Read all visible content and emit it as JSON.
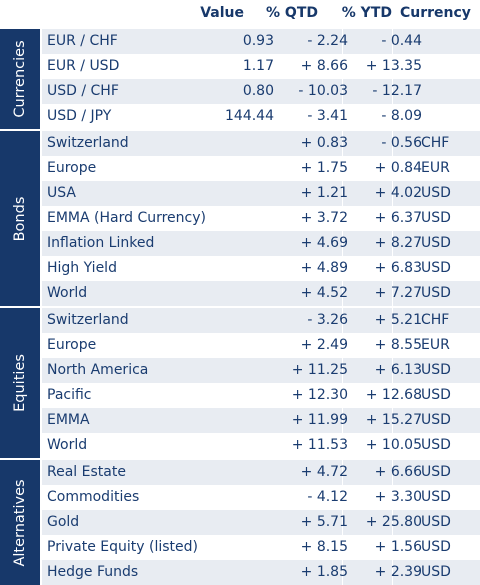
{
  "header": {
    "value": "Value",
    "qtd": "% QTD",
    "ytd": "% YTD",
    "currency": "Currency"
  },
  "sections": [
    {
      "label": "Currencies",
      "rows": [
        {
          "name": "EUR / CHF",
          "value": "0.93",
          "qtd": "- 2.24",
          "ytd": "- 0.44",
          "currency": ""
        },
        {
          "name": "EUR / USD",
          "value": "1.17",
          "qtd": "+ 8.66",
          "ytd": "+ 13.35",
          "currency": ""
        },
        {
          "name": "USD / CHF",
          "value": "0.80",
          "qtd": "- 10.03",
          "ytd": "- 12.17",
          "currency": ""
        },
        {
          "name": "USD / JPY",
          "value": "144.44",
          "qtd": "- 3.41",
          "ytd": "- 8.09",
          "currency": ""
        }
      ]
    },
    {
      "label": "Bonds",
      "rows": [
        {
          "name": "Switzerland",
          "value": "",
          "qtd": "+ 0.83",
          "ytd": "- 0.56",
          "currency": "CHF"
        },
        {
          "name": "Europe",
          "value": "",
          "qtd": "+ 1.75",
          "ytd": "+ 0.84",
          "currency": "EUR"
        },
        {
          "name": "USA",
          "value": "",
          "qtd": "+ 1.21",
          "ytd": "+ 4.02",
          "currency": "USD"
        },
        {
          "name": "EMMA (Hard Currency)",
          "value": "",
          "qtd": "+ 3.72",
          "ytd": "+ 6.37",
          "currency": "USD"
        },
        {
          "name": "Inflation Linked",
          "value": "",
          "qtd": "+ 4.69",
          "ytd": "+ 8.27",
          "currency": "USD"
        },
        {
          "name": "High Yield",
          "value": "",
          "qtd": "+ 4.89",
          "ytd": "+ 6.83",
          "currency": "USD"
        },
        {
          "name": "World",
          "value": "",
          "qtd": "+ 4.52",
          "ytd": "+ 7.27",
          "currency": "USD"
        }
      ]
    },
    {
      "label": "Equities",
      "rows": [
        {
          "name": "Switzerland",
          "value": "",
          "qtd": "- 3.26",
          "ytd": "+ 5.21",
          "currency": "CHF"
        },
        {
          "name": "Europe",
          "value": "",
          "qtd": "+ 2.49",
          "ytd": "+ 8.55",
          "currency": "EUR"
        },
        {
          "name": "North America",
          "value": "",
          "qtd": "+ 11.25",
          "ytd": "+ 6.13",
          "currency": "USD"
        },
        {
          "name": "Pacific",
          "value": "",
          "qtd": "+ 12.30",
          "ytd": "+ 12.68",
          "currency": "USD"
        },
        {
          "name": "EMMA",
          "value": "",
          "qtd": "+ 11.99",
          "ytd": "+ 15.27",
          "currency": "USD"
        },
        {
          "name": "World",
          "value": "",
          "qtd": "+ 11.53",
          "ytd": "+ 10.05",
          "currency": "USD"
        }
      ]
    },
    {
      "label": "Alternatives",
      "rows": [
        {
          "name": "Real Estate",
          "value": "",
          "qtd": "+ 4.72",
          "ytd": "+ 6.66",
          "currency": "USD"
        },
        {
          "name": "Commodities",
          "value": "",
          "qtd": "- 4.12",
          "ytd": "+ 3.30",
          "currency": "USD"
        },
        {
          "name": "Gold",
          "value": "",
          "qtd": "+ 5.71",
          "ytd": "+ 25.80",
          "currency": "USD"
        },
        {
          "name": "Private Equity (listed)",
          "value": "",
          "qtd": "+ 8.15",
          "ytd": "+ 1.56",
          "currency": "USD"
        },
        {
          "name": "Hedge Funds",
          "value": "",
          "qtd": "+ 1.85",
          "ytd": "+ 2.39",
          "currency": "USD"
        }
      ]
    }
  ]
}
